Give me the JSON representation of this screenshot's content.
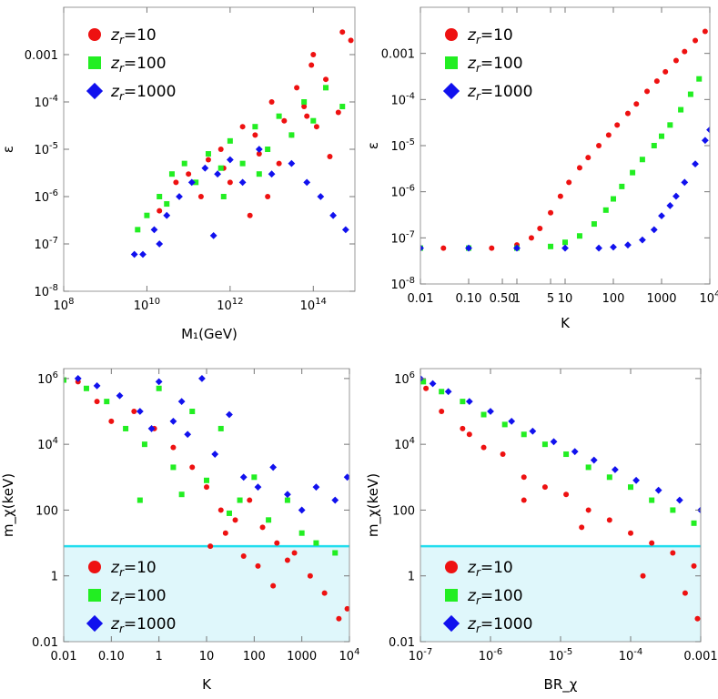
{
  "figure": {
    "description_panels": 4
  },
  "colors": {
    "z10": "#ee1111",
    "z100": "#22ee22",
    "z1000": "#1111ee",
    "band": "#dff7fb",
    "band_line": "#22ddee"
  },
  "chart_data": [
    {
      "type": "scatter",
      "id": "eps-vs-M1",
      "xlabel": "M₁(GeV)",
      "ylabel": "ε",
      "xscale": "log",
      "yscale": "log",
      "xlim": [
        100000000.0,
        1000000000000000.0
      ],
      "ylim": [
        1e-08,
        0.01
      ],
      "xticks": [
        {
          "v": 100000000.0,
          "b": "10",
          "e": "8"
        },
        {
          "v": 10000000000.0,
          "b": "10",
          "e": "10"
        },
        {
          "v": 1000000000000.0,
          "b": "10",
          "e": "12"
        },
        {
          "v": 100000000000000.0,
          "b": "10",
          "e": "14"
        }
      ],
      "yticks": [
        {
          "v": 1e-08,
          "b": "10",
          "e": "-8"
        },
        {
          "v": 1e-07,
          "b": "10",
          "e": "-7"
        },
        {
          "v": 1e-06,
          "b": "10",
          "e": "-6"
        },
        {
          "v": 1e-05,
          "b": "10",
          "e": "-5"
        },
        {
          "v": 0.0001,
          "b": "10",
          "e": "-4"
        },
        {
          "v": 0.001,
          "t": "0.001"
        }
      ],
      "legend": {
        "position": "top-left"
      },
      "series": [
        {
          "name": "z_r=10",
          "label_base": "z",
          "label_sub": "r",
          "label_rest": "=10",
          "marker": "circle",
          "x": [
            20000000000.0,
            50000000000.0,
            100000000000.0,
            300000000000.0,
            600000000000.0,
            1000000000000.0,
            2000000000000.0,
            5000000000000.0,
            10000000000000.0,
            20000000000000.0,
            40000000000000.0,
            70000000000000.0,
            100000000000000.0,
            200000000000000.0,
            400000000000000.0,
            800000000000000.0,
            3000000000000.0,
            8000000000000.0,
            15000000000000.0,
            30000000000000.0,
            60000000000000.0,
            120000000000000.0,
            250000000000000.0,
            500000000000000.0,
            200000000000.0,
            700000000000.0,
            4000000000000.0,
            90000000000000.0
          ],
          "y": [
            5e-07,
            2e-06,
            3e-06,
            6e-06,
            1e-05,
            2e-06,
            3e-05,
            8e-06,
            0.0001,
            4e-05,
            0.0002,
            5e-05,
            0.001,
            0.0003,
            6e-05,
            0.002,
            4e-07,
            1e-06,
            5e-06,
            2e-05,
            8e-05,
            3e-05,
            7e-06,
            0.003,
            1e-06,
            4e-06,
            2e-05,
            0.0006
          ]
        },
        {
          "name": "z_r=100",
          "label_base": "z",
          "label_sub": "r",
          "label_rest": "=100",
          "marker": "square",
          "x": [
            6000000000.0,
            10000000000.0,
            20000000000.0,
            40000000000.0,
            80000000000.0,
            150000000000.0,
            300000000000.0,
            600000000000.0,
            1000000000000.0,
            2000000000000.0,
            4000000000000.0,
            8000000000000.0,
            15000000000000.0,
            30000000000000.0,
            60000000000000.0,
            100000000000000.0,
            200000000000000.0,
            500000000000000.0,
            30000000000.0,
            700000000000.0,
            5000000000000.0
          ],
          "y": [
            2e-07,
            4e-07,
            1e-06,
            3e-06,
            5e-06,
            2e-06,
            8e-06,
            4e-06,
            1.5e-05,
            5e-06,
            3e-05,
            1e-05,
            5e-05,
            2e-05,
            0.0001,
            4e-05,
            0.0002,
            8e-05,
            7e-07,
            1e-06,
            3e-06
          ]
        },
        {
          "name": "z_r=1000",
          "label_base": "z",
          "label_sub": "r",
          "label_rest": "=1000",
          "marker": "diamond",
          "x": [
            5000000000.0,
            8000000000.0,
            15000000000.0,
            30000000000.0,
            60000000000.0,
            120000000000.0,
            250000000000.0,
            500000000000.0,
            1000000000000.0,
            2000000000000.0,
            5000000000000.0,
            10000000000000.0,
            30000000000000.0,
            70000000000000.0,
            150000000000000.0,
            300000000000000.0,
            600000000000000.0,
            20000000000.0,
            400000000000.0
          ],
          "y": [
            6e-08,
            6e-08,
            2e-07,
            4e-07,
            1e-06,
            2e-06,
            4e-06,
            3e-06,
            6e-06,
            2e-06,
            1e-05,
            3e-06,
            5e-06,
            2e-06,
            1e-06,
            4e-07,
            2e-07,
            1e-07,
            1.5e-07
          ]
        }
      ]
    },
    {
      "type": "scatter",
      "id": "eps-vs-K",
      "xlabel": "K",
      "ylabel": "ε",
      "xscale": "log",
      "yscale": "log",
      "xlim": [
        0.01,
        10000
      ],
      "ylim": [
        1e-08,
        0.01
      ],
      "xticks": [
        {
          "v": 0.01,
          "t": "0.01"
        },
        {
          "v": 0.1,
          "t": "0.10"
        },
        {
          "v": 0.5,
          "t": "0.50"
        },
        {
          "v": 1,
          "t": "1"
        },
        {
          "v": 5,
          "t": "5"
        },
        {
          "v": 10,
          "t": "10"
        },
        {
          "v": 100,
          "t": "100"
        },
        {
          "v": 1000,
          "t": "1000"
        },
        {
          "v": 10000,
          "b": "10",
          "e": "4"
        }
      ],
      "yticks": [
        {
          "v": 1e-08,
          "b": "10",
          "e": "-8"
        },
        {
          "v": 1e-07,
          "b": "10",
          "e": "-7"
        },
        {
          "v": 1e-06,
          "b": "10",
          "e": "-6"
        },
        {
          "v": 1e-05,
          "b": "10",
          "e": "-5"
        },
        {
          "v": 0.0001,
          "b": "10",
          "e": "-4"
        },
        {
          "v": 0.001,
          "t": "0.001"
        }
      ],
      "legend": {
        "position": "top-left"
      },
      "series": [
        {
          "name": "z_r=10",
          "label_base": "z",
          "label_sub": "r",
          "label_rest": "=10",
          "marker": "circle",
          "x": [
            0.01,
            0.03,
            0.1,
            0.3,
            1,
            2,
            3,
            5,
            8,
            12,
            20,
            30,
            50,
            80,
            120,
            200,
            300,
            500,
            800,
            1200,
            2000,
            3000,
            5000,
            8000
          ],
          "y": [
            6e-08,
            6e-08,
            6e-08,
            6e-08,
            7e-08,
            1e-07,
            1.6e-07,
            3.5e-07,
            8e-07,
            1.6e-06,
            3.3e-06,
            5.5e-06,
            1e-05,
            1.7e-05,
            2.8e-05,
            5e-05,
            8e-05,
            0.00015,
            0.00025,
            0.0004,
            0.0007,
            0.0011,
            0.0019,
            0.003
          ]
        },
        {
          "name": "z_r=100",
          "label_base": "z",
          "label_sub": "r",
          "label_rest": "=100",
          "marker": "square",
          "x": [
            0.01,
            0.1,
            1,
            5,
            10,
            20,
            40,
            70,
            100,
            150,
            250,
            400,
            700,
            1000,
            1500,
            2500,
            4000,
            6000
          ],
          "y": [
            6e-08,
            6e-08,
            6e-08,
            6.5e-08,
            8e-08,
            1.1e-07,
            2e-07,
            4e-07,
            7e-07,
            1.3e-06,
            2.6e-06,
            5e-06,
            1e-05,
            1.6e-05,
            2.8e-05,
            6e-05,
            0.00013,
            0.00028
          ]
        },
        {
          "name": "z_r=1000",
          "label_base": "z",
          "label_sub": "r",
          "label_rest": "=1000",
          "marker": "diamond",
          "x": [
            0.01,
            0.1,
            1,
            10,
            50,
            100,
            200,
            400,
            700,
            1000,
            1500,
            2000,
            3000,
            5000,
            8000,
            10000
          ],
          "y": [
            6e-08,
            6e-08,
            6e-08,
            6e-08,
            6e-08,
            6.3e-08,
            7e-08,
            9e-08,
            1.5e-07,
            3e-07,
            5e-07,
            8e-07,
            1.6e-06,
            4e-06,
            1.3e-05,
            2.2e-05
          ]
        }
      ]
    },
    {
      "type": "scatter",
      "id": "mchi-vs-K",
      "xlabel": "K",
      "ylabel": "m_χ(keV)",
      "xscale": "log",
      "yscale": "log",
      "xlim": [
        0.01,
        10000
      ],
      "ylim": [
        0.01,
        2000000.0
      ],
      "band": {
        "y_from": 0.01,
        "y_to": 8
      },
      "xticks": [
        {
          "v": 0.01,
          "t": "0.01"
        },
        {
          "v": 0.1,
          "t": "0.10"
        },
        {
          "v": 1,
          "t": "1"
        },
        {
          "v": 10,
          "t": "10"
        },
        {
          "v": 100,
          "t": "100"
        },
        {
          "v": 1000,
          "t": "1000"
        },
        {
          "v": 10000,
          "b": "10",
          "e": "4"
        }
      ],
      "yticks": [
        {
          "v": 0.01,
          "t": "0.01"
        },
        {
          "v": 1,
          "t": "1"
        },
        {
          "v": 100,
          "t": "100"
        },
        {
          "v": 10000,
          "b": "10",
          "e": "4"
        },
        {
          "v": 1000000,
          "b": "10",
          "e": "6"
        }
      ],
      "legend": {
        "position": "bottom-left"
      },
      "series": [
        {
          "name": "z_r=10",
          "label_base": "z",
          "label_sub": "r",
          "label_rest": "=10",
          "marker": "circle",
          "x": [
            0.02,
            0.05,
            0.1,
            0.3,
            0.8,
            2,
            5,
            10,
            20,
            40,
            80,
            150,
            300,
            700,
            1500,
            3000,
            6000,
            9000,
            12,
            25,
            60,
            120,
            250,
            500
          ],
          "y": [
            800000.0,
            200000.0,
            50000.0,
            100000.0,
            30000.0,
            8000.0,
            2000.0,
            500,
            100,
            50,
            200,
            30,
            10,
            5,
            1,
            0.3,
            0.05,
            0.1,
            8,
            20,
            4,
            2,
            0.5,
            3
          ]
        },
        {
          "name": "z_r=100",
          "label_base": "z",
          "label_sub": "r",
          "label_rest": "=100",
          "marker": "square",
          "x": [
            0.01,
            0.03,
            0.08,
            0.2,
            0.5,
            1,
            2,
            5,
            10,
            20,
            50,
            100,
            200,
            500,
            1000,
            2000,
            5000,
            0.4,
            3,
            30
          ],
          "y": [
            900000.0,
            500000.0,
            200000.0,
            30000.0,
            10000.0,
            500000.0,
            2000.0,
            100000.0,
            800,
            30000.0,
            200,
            1000.0,
            50,
            200,
            20,
            10,
            5,
            200,
            300,
            80
          ]
        },
        {
          "name": "z_r=1000",
          "label_base": "z",
          "label_sub": "r",
          "label_rest": "=1000",
          "marker": "diamond",
          "x": [
            0.02,
            0.05,
            0.15,
            0.4,
            1,
            2,
            4,
            8,
            15,
            30,
            60,
            120,
            250,
            500,
            1000,
            2000,
            5000,
            9000,
            3,
            0.7
          ],
          "y": [
            1000000.0,
            600000.0,
            300000.0,
            100000.0,
            800000.0,
            50000.0,
            20000.0,
            1000000.0,
            5000.0,
            80000.0,
            1000.0,
            500,
            2000.0,
            300,
            100,
            500,
            200,
            1000.0,
            200000.0,
            30000.0
          ]
        }
      ]
    },
    {
      "type": "scatter",
      "id": "mchi-vs-BR",
      "xlabel": "BR_χ",
      "ylabel": "m_χ(keV)",
      "xscale": "log",
      "yscale": "log",
      "xlim": [
        1e-07,
        0.001
      ],
      "ylim": [
        0.01,
        2000000.0
      ],
      "band": {
        "y_from": 0.01,
        "y_to": 8
      },
      "xticks": [
        {
          "v": 1e-07,
          "b": "10",
          "e": "-7"
        },
        {
          "v": 1e-06,
          "b": "10",
          "e": "-6"
        },
        {
          "v": 1e-05,
          "b": "10",
          "e": "-5"
        },
        {
          "v": 0.0001,
          "b": "10",
          "e": "-4"
        },
        {
          "v": 0.001,
          "t": "0.001"
        }
      ],
      "yticks": [
        {
          "v": 0.01,
          "t": "0.01"
        },
        {
          "v": 1,
          "t": "1"
        },
        {
          "v": 100,
          "t": "100"
        },
        {
          "v": 10000,
          "b": "10",
          "e": "4"
        },
        {
          "v": 1000000,
          "b": "10",
          "e": "6"
        }
      ],
      "legend": {
        "position": "bottom-left"
      },
      "series": [
        {
          "name": "z_r=10",
          "label_base": "z",
          "label_sub": "r",
          "label_rest": "=10",
          "marker": "circle",
          "x": [
            1.2e-07,
            2e-07,
            4e-07,
            8e-07,
            1.5e-06,
            3e-06,
            6e-06,
            1.2e-05,
            2.5e-05,
            5e-05,
            0.0001,
            0.0002,
            0.0004,
            0.0008,
            3e-06,
            2e-05,
            0.00015,
            0.0006,
            0.0009,
            5e-07
          ],
          "y": [
            500000.0,
            100000.0,
            30000.0,
            8000.0,
            5000.0,
            1000.0,
            500,
            300,
            100,
            50,
            20,
            10,
            5,
            2,
            200,
            30,
            1,
            0.3,
            0.05,
            20000.0
          ]
        },
        {
          "name": "z_r=100",
          "label_base": "z",
          "label_sub": "r",
          "label_rest": "=100",
          "marker": "square",
          "x": [
            1.1e-07,
            2e-07,
            4e-07,
            8e-07,
            1.6e-06,
            3e-06,
            6e-06,
            1.2e-05,
            2.5e-05,
            5e-05,
            0.0001,
            0.0002,
            0.0004,
            0.0008
          ],
          "y": [
            800000.0,
            400000.0,
            200000.0,
            80000.0,
            40000.0,
            20000.0,
            10000.0,
            5000.0,
            2000.0,
            1000.0,
            500,
            200,
            100,
            40
          ]
        },
        {
          "name": "z_r=1000",
          "label_base": "z",
          "label_sub": "r",
          "label_rest": "=1000",
          "marker": "diamond",
          "x": [
            1e-07,
            1.5e-07,
            2.5e-07,
            5e-07,
            1e-06,
            2e-06,
            4e-06,
            8e-06,
            1.6e-05,
            3e-05,
            6e-05,
            0.00012,
            0.00025,
            0.0005,
            0.001
          ],
          "y": [
            1000000.0,
            700000.0,
            400000.0,
            200000.0,
            100000.0,
            50000.0,
            25000.0,
            12000.0,
            6000.0,
            3300.0,
            1700.0,
            800,
            400,
            200,
            100
          ]
        }
      ]
    }
  ]
}
